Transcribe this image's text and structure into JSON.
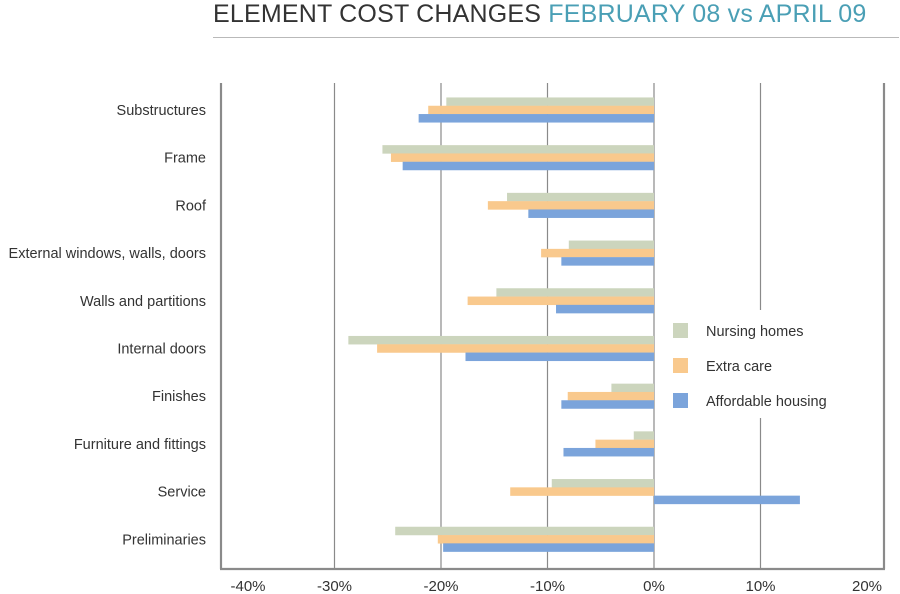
{
  "title": {
    "main": "ELEMENT COST CHANGES ",
    "accent": "FEBRUARY 08 vs APRIL 09"
  },
  "colors": {
    "Nursing homes": "#ccd5bd",
    "Extra care": "#f9c98d",
    "Affordable housing": "#7ba4db",
    "grid": "#8a8a8a",
    "title_accent": "#4a9fb5"
  },
  "chart_data": {
    "type": "bar",
    "orientation": "horizontal",
    "title": "ELEMENT COST CHANGES FEBRUARY 08 vs APRIL 09",
    "xlabel": "",
    "ylabel": "",
    "xlim": [
      -40,
      20
    ],
    "xticks": [
      -40,
      -30,
      -20,
      -10,
      0,
      10,
      20
    ],
    "xtick_labels": [
      "-40%",
      "-30%",
      "-20%",
      "-10%",
      "0%",
      "10%",
      "20%"
    ],
    "grid": true,
    "legend_position": "right",
    "categories": [
      "Substructures",
      "Frame",
      "Roof",
      "External windows, walls, doors",
      "Walls and partitions",
      "Internal doors",
      "Finishes",
      "Furniture and fittings",
      "Service",
      "Preliminaries"
    ],
    "series": [
      {
        "name": "Nursing homes",
        "values": [
          -19.5,
          -25.5,
          -13.8,
          -8.0,
          -14.8,
          -28.7,
          -4.0,
          -1.9,
          -9.6,
          -24.3
        ]
      },
      {
        "name": "Extra care",
        "values": [
          -21.2,
          -24.7,
          -15.6,
          -10.6,
          -17.5,
          -26.0,
          -8.1,
          -5.5,
          -13.5,
          -20.3
        ]
      },
      {
        "name": "Affordable housing",
        "values": [
          -22.1,
          -23.6,
          -11.8,
          -8.7,
          -9.2,
          -17.7,
          -8.7,
          -8.5,
          13.7,
          -19.8
        ]
      }
    ]
  }
}
